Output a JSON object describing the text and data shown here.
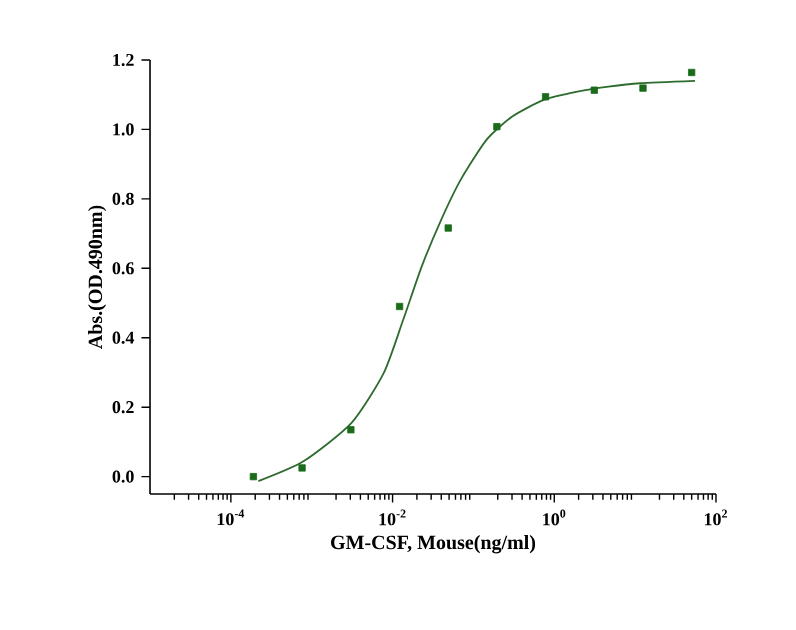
{
  "chart_data": {
    "type": "scatter",
    "xlabel": "GM-CSF, Mouse(ng/ml)",
    "ylabel": "Abs.(OD.490nm)",
    "log": "x",
    "xlim": [
      1e-05,
      100
    ],
    "ylim": [
      -0.05,
      1.2
    ],
    "xticks": [
      {
        "value": 0.0001,
        "label": "10$^{-4}$"
      },
      {
        "value": 0.01,
        "label": "10$^{-2}$"
      },
      {
        "value": 1,
        "label": "10$^{0}$"
      },
      {
        "value": 100,
        "label": "10$^{2}$"
      }
    ],
    "yticks": [
      {
        "value": 0,
        "label": "0.0"
      },
      {
        "value": 0.2,
        "label": "0.2"
      },
      {
        "value": 0.4,
        "label": "0.4"
      },
      {
        "value": 0.6,
        "label": "0.6"
      },
      {
        "value": 0.8,
        "label": "0.8"
      },
      {
        "value": 1.0,
        "label": "1.0"
      },
      {
        "value": 1.2,
        "label": "1.2"
      }
    ],
    "series": [
      {
        "marker": "square",
        "color": "#1a6b1a",
        "x": [
          0.00019,
          0.00076,
          0.00305,
          0.0122,
          0.0488,
          0.195,
          0.78,
          3.125,
          12.5,
          50
        ],
        "values": [
          0.0,
          0.025,
          0.135,
          0.49,
          0.716,
          1.008,
          1.094,
          1.113,
          1.119,
          1.164
        ]
      },
      {
        "type": "line",
        "marker": "none",
        "line_style": "solid",
        "color": "#2e6b2e",
        "x": [
          0.000219,
          0.00079,
          0.00309,
          0.00776,
          0.0135,
          0.0229,
          0.0398,
          0.0692,
          0.145,
          0.302,
          0.741,
          1.86,
          4.68,
          11.5,
          55
        ],
        "values": [
          -0.013,
          0.044,
          0.154,
          0.298,
          0.451,
          0.605,
          0.739,
          0.854,
          0.97,
          1.037,
          1.085,
          1.108,
          1.123,
          1.133,
          1.14
        ]
      }
    ]
  }
}
